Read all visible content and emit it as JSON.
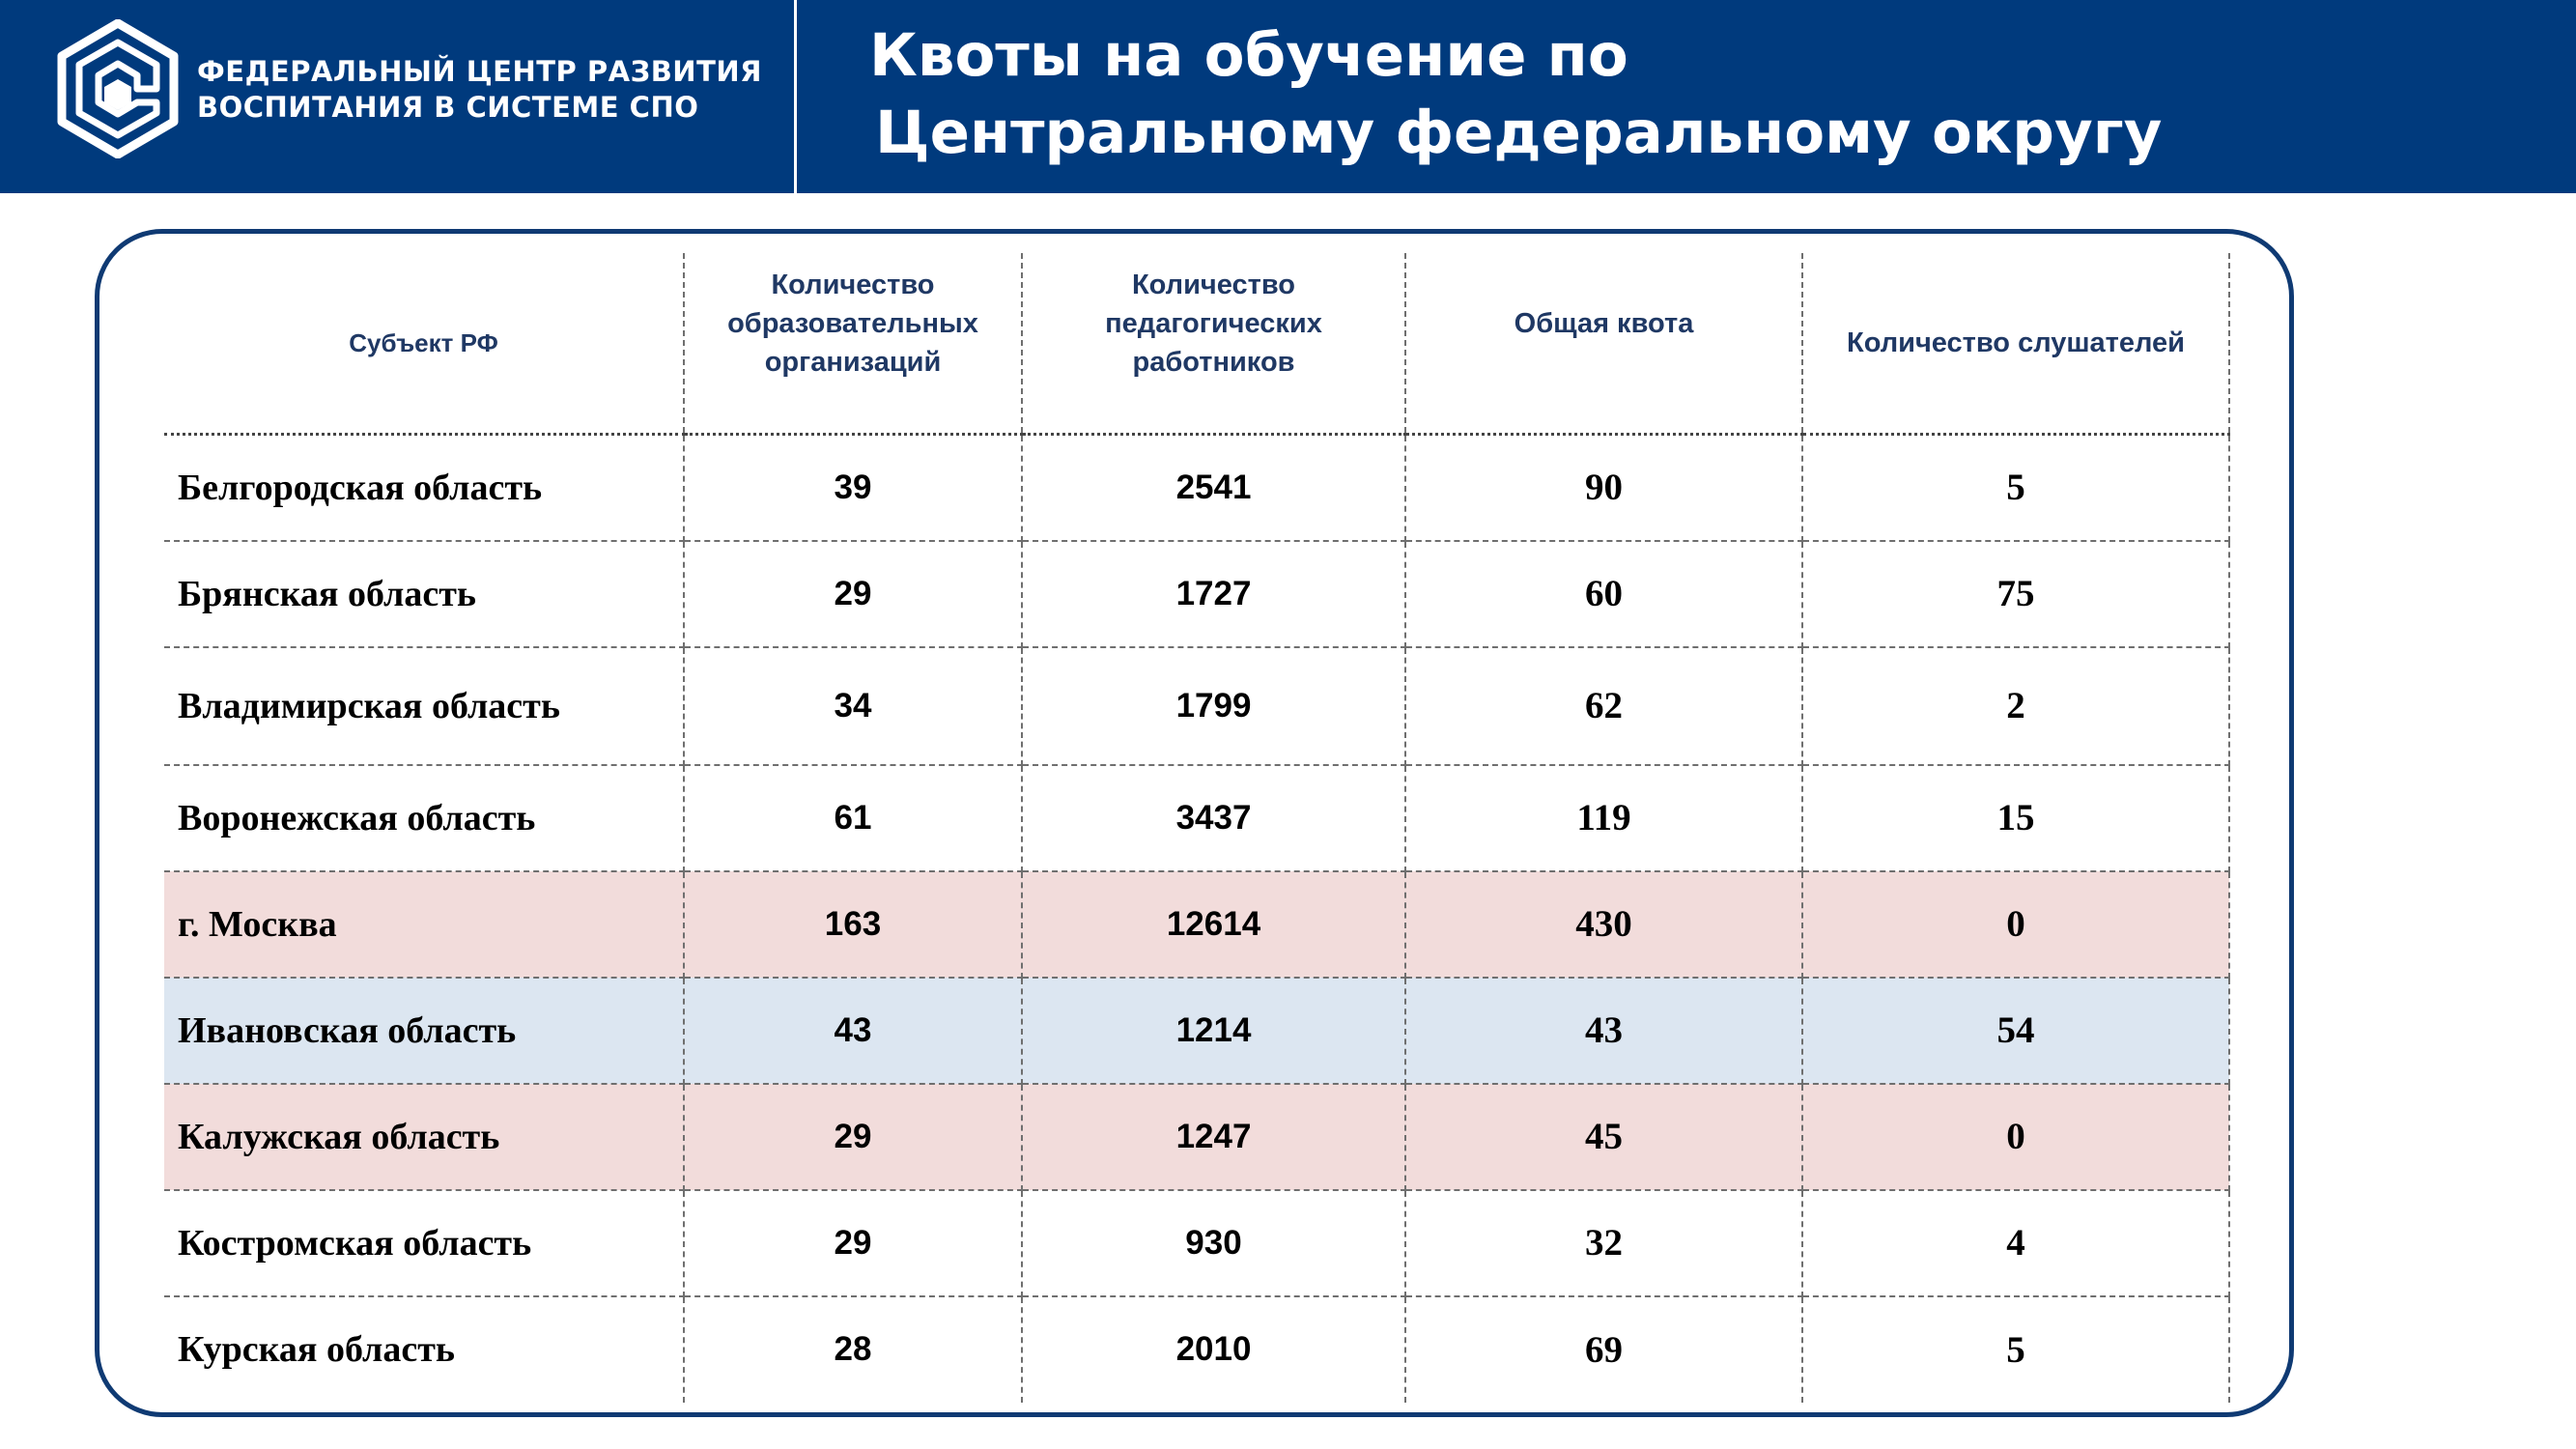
{
  "header": {
    "org_line1": "ФЕДЕРАЛЬНЫЙ ЦЕНТР РАЗВИТИЯ",
    "org_line2": "ВОСПИТАНИЯ В СИСТЕМЕ СПО",
    "title_line1": "Квоты на обучение по",
    "title_line2": "Центральному федеральному округу",
    "logo_icon": "fcrv-hexagon-logo"
  },
  "colors": {
    "header_bg": "#003a7d",
    "frame_border": "#0f3a73",
    "header_text": "#1f3864",
    "highlight_pink": "#f2dcdb",
    "highlight_blue": "#dce6f1"
  },
  "table": {
    "columns": [
      "Субъект РФ",
      "Количество образовательных организаций",
      "Количество педагогических работников",
      "Общая квота",
      "Количество слушателей"
    ],
    "rows": [
      {
        "region": "Белгородская область",
        "orgs": "39",
        "teachers": "2541",
        "quota": "90",
        "listeners": "5",
        "highlight": "none"
      },
      {
        "region": "Брянская область",
        "orgs": "29",
        "teachers": "1727",
        "quota": "60",
        "listeners": "75",
        "highlight": "none"
      },
      {
        "region": "Владимирская область",
        "orgs": "34",
        "teachers": "1799",
        "quota": "62",
        "listeners": "2",
        "highlight": "none"
      },
      {
        "region": "Воронежская область",
        "orgs": "61",
        "teachers": "3437",
        "quota": "119",
        "listeners": "15",
        "highlight": "none"
      },
      {
        "region": "г. Москва",
        "orgs": "163",
        "teachers": "12614",
        "quota": "430",
        "listeners": "0",
        "highlight": "pink"
      },
      {
        "region": "Ивановская область",
        "orgs": "43",
        "teachers": "1214",
        "quota": "43",
        "listeners": "54",
        "highlight": "blue"
      },
      {
        "region": "Калужская область",
        "orgs": "29",
        "teachers": "1247",
        "quota": "45",
        "listeners": "0",
        "highlight": "pink"
      },
      {
        "region": "Костромская область",
        "orgs": "29",
        "teachers": "930",
        "quota": "32",
        "listeners": "4",
        "highlight": "none"
      },
      {
        "region": "Курская область",
        "orgs": "28",
        "teachers": "2010",
        "quota": "69",
        "listeners": "5",
        "highlight": "none"
      }
    ]
  }
}
